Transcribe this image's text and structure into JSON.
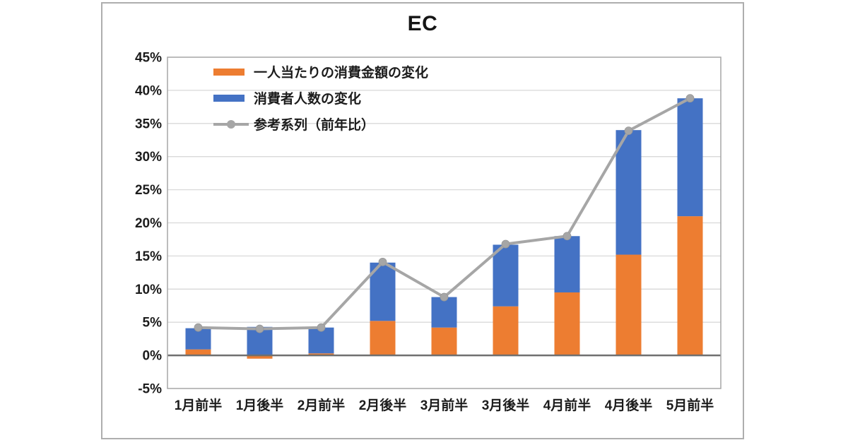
{
  "chart": {
    "title": "EC"
  },
  "chart_data": {
    "type": "combo",
    "title": "EC",
    "categories": [
      "1月前半",
      "1月後半",
      "2月前半",
      "2月後半",
      "3月前半",
      "3月後半",
      "4月前半",
      "4月後半",
      "5月前半"
    ],
    "series": [
      {
        "name": "一人当たりの消費金額の変化",
        "type": "bar",
        "stacked": true,
        "color": "#ED7D31",
        "values": [
          0.9,
          -0.5,
          0.3,
          5.2,
          4.2,
          7.4,
          9.5,
          15.2,
          21.0
        ]
      },
      {
        "name": "消費者人数の変化",
        "type": "bar",
        "stacked": true,
        "color": "#4472C4",
        "values": [
          3.2,
          4.3,
          3.9,
          8.8,
          4.6,
          9.3,
          8.5,
          18.8,
          17.8
        ]
      },
      {
        "name": "参考系列（前年比）",
        "type": "line",
        "marker": "circle",
        "color": "#A6A6A6",
        "values": [
          4.2,
          4.0,
          4.2,
          14.1,
          8.8,
          16.8,
          18.0,
          33.9,
          38.8
        ]
      }
    ],
    "xlabel": "",
    "ylabel": "",
    "ylim": [
      -5,
      45
    ],
    "ytick_step": 5,
    "ytick_suffix": "%",
    "grid": true,
    "legend_position": "top-left-inside",
    "colors": {
      "grid_line": "#d9d9d9",
      "zero_line": "#6f6f6f",
      "plot_border": "#a6a6a6",
      "tick_text": "#1c1c1c"
    }
  }
}
